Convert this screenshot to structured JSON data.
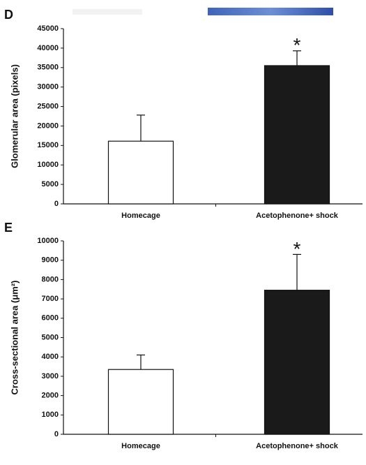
{
  "chart_data": [
    {
      "type": "bar",
      "panel_label": "D",
      "ylabel": "Glomerular area (pixels)",
      "categories": [
        "Homecage",
        "Acetophenone+ shock"
      ],
      "values": [
        16100,
        35500
      ],
      "errors": [
        6700,
        3800
      ],
      "colors": [
        "#ffffff",
        "#1a1a1a"
      ],
      "annotation": "*",
      "ylim": [
        0,
        45000
      ],
      "yticks": [
        0,
        5000,
        10000,
        15000,
        20000,
        25000,
        30000,
        35000,
        40000,
        45000
      ]
    },
    {
      "type": "bar",
      "panel_label": "E",
      "ylabel": "Cross-sectional area (μm²)",
      "categories": [
        "Homecage",
        "Acetophenone+ shock"
      ],
      "values": [
        3350,
        7450
      ],
      "errors": [
        750,
        1850
      ],
      "colors": [
        "#ffffff",
        "#1a1a1a"
      ],
      "annotation": "*",
      "ylim": [
        0,
        10000
      ],
      "yticks": [
        0,
        1000,
        2000,
        3000,
        4000,
        5000,
        6000,
        7000,
        8000,
        9000,
        10000
      ]
    }
  ]
}
